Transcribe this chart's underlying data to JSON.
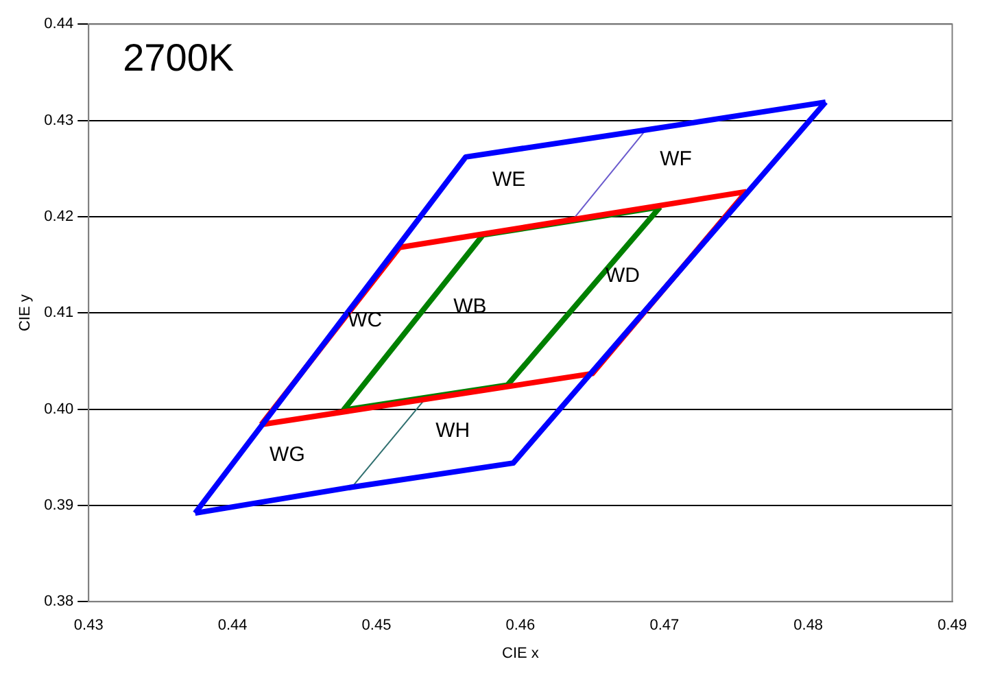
{
  "chart_data": {
    "type": "line",
    "title": "2700K",
    "xlabel": "CIE x",
    "ylabel": "CIE y",
    "xlim": [
      0.43,
      0.49
    ],
    "xticks": [
      0.43,
      0.44,
      0.45,
      0.46,
      0.47,
      0.48,
      0.49
    ],
    "ylim": [
      0.38,
      0.44
    ],
    "yticks": [
      0.38,
      0.39,
      {
        "value": 0.4,
        "label": "0.40"
      },
      0.41,
      0.42,
      0.43,
      0.44
    ],
    "grid": "y",
    "legend": false,
    "series": [
      {
        "color": "#0000ff",
        "x": [
          0.4374,
          0.4483,
          0.4595,
          0.4812
        ],
        "values": [
          0.3892,
          0.3919,
          0.3944,
          0.4319
        ]
      },
      {
        "color": "#0000ff",
        "x": [
          0.4374,
          0.4562,
          0.4687,
          0.4812
        ],
        "values": [
          0.3892,
          0.4262,
          0.429,
          0.4319
        ]
      },
      {
        "color": "#ff0000",
        "x": [
          0.442,
          0.4516,
          0.4757
        ],
        "values": [
          0.3984,
          0.4168,
          0.4226
        ]
      },
      {
        "color": "#ff0000",
        "x": [
          0.442,
          0.465,
          0.4757
        ],
        "values": [
          0.3984,
          0.4037,
          0.4226
        ]
      },
      {
        "color": "#008000",
        "x": [
          0.4477,
          0.4574,
          0.4697
        ],
        "values": [
          0.3999,
          0.4181,
          0.421
        ]
      },
      {
        "color": "#008000",
        "x": [
          0.4477,
          0.4591,
          0.4697
        ],
        "values": [
          0.3999,
          0.4025,
          0.421
        ]
      },
      {
        "color": "#6a5acd",
        "x": [
          0.4636,
          0.4687
        ],
        "values": [
          0.4196,
          0.429
        ]
      },
      {
        "color": "#2f6f6f",
        "x": [
          0.4483,
          0.4534
        ],
        "values": [
          0.3919,
          0.4011
        ]
      }
    ],
    "annotations": [
      "WE",
      "WF",
      "WD",
      "WB",
      "WC",
      "WG",
      "WH"
    ]
  }
}
